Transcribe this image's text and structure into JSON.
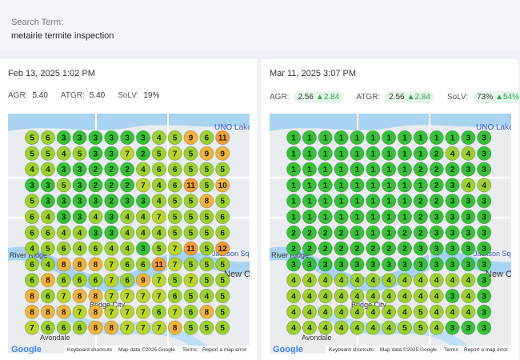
{
  "search": {
    "label": "Search Term:",
    "term": "metairie termite inspection"
  },
  "panels": [
    {
      "date": "Feb 13, 2025 1:02 PM",
      "metrics": [
        {
          "label": "AGR:",
          "value": "5.40"
        },
        {
          "label": "ATGR:",
          "value": "5.40"
        },
        {
          "label": "SoLV:",
          "value": "19%"
        }
      ],
      "map": {
        "labels": [
          "UNO Lakefr",
          "River Ridge",
          "Bridge City",
          "Avondale",
          "Jackson Squ",
          "New O"
        ],
        "footer": [
          "Google",
          "Keyboard shortcuts",
          "Map data ©2025 Google",
          "Terms",
          "Report a map error"
        ],
        "grid": [
          [
            5,
            6,
            3,
            3,
            3,
            3,
            3,
            3,
            4,
            5,
            9,
            6,
            11
          ],
          [
            5,
            5,
            4,
            5,
            3,
            3,
            7,
            2,
            5,
            7,
            5,
            9,
            9
          ],
          [
            4,
            4,
            3,
            3,
            2,
            2,
            2,
            4,
            6,
            6,
            5,
            5,
            5
          ],
          [
            3,
            3,
            5,
            3,
            2,
            2,
            2,
            7,
            4,
            6,
            11,
            5,
            10
          ],
          [
            5,
            3,
            3,
            3,
            3,
            2,
            3,
            3,
            4,
            5,
            5,
            8,
            5
          ],
          [
            6,
            4,
            3,
            3,
            4,
            3,
            4,
            4,
            7,
            5,
            5,
            5,
            6
          ],
          [
            6,
            6,
            4,
            4,
            3,
            3,
            4,
            4,
            4,
            5,
            5,
            5,
            6
          ],
          [
            4,
            5,
            6,
            4,
            6,
            4,
            4,
            3,
            5,
            7,
            11,
            5,
            12
          ],
          [
            6,
            4,
            8,
            8,
            8,
            7,
            6,
            6,
            11,
            7,
            5,
            5,
            5
          ],
          [
            6,
            8,
            6,
            6,
            6,
            7,
            6,
            9,
            7,
            5,
            7,
            5,
            5
          ],
          [
            8,
            6,
            7,
            8,
            8,
            7,
            7,
            7,
            7,
            6,
            5,
            4,
            5
          ],
          [
            8,
            8,
            8,
            7,
            8,
            7,
            7,
            7,
            6,
            7,
            6,
            8,
            5
          ],
          [
            7,
            6,
            6,
            6,
            8,
            8,
            7,
            7,
            7,
            8,
            5,
            5,
            5
          ]
        ]
      }
    },
    {
      "date": "Mar 11, 2025 3:07 PM",
      "metrics": [
        {
          "label": "AGR:",
          "value": "2.56",
          "change": "2.84"
        },
        {
          "label": "ATGR:",
          "value": "2.56",
          "change": "2.84"
        },
        {
          "label": "SoLV:",
          "value": "73%",
          "change": "54%"
        }
      ],
      "map": {
        "labels": [
          "UNO Lakefr",
          "River Ridge",
          "Bridge City",
          "Avondale",
          "Jackson Squ",
          "New O"
        ],
        "footer": [
          "Google",
          "Keyboard shortcuts",
          "Map data ©2025 Google",
          "Terms",
          "Report a map error"
        ],
        "grid": [
          [
            1,
            1,
            1,
            1,
            1,
            1,
            1,
            1,
            1,
            1,
            1,
            3,
            3
          ],
          [
            1,
            1,
            1,
            1,
            1,
            1,
            1,
            1,
            1,
            2,
            4,
            4,
            3
          ],
          [
            1,
            1,
            1,
            1,
            1,
            1,
            1,
            1,
            2,
            2,
            2,
            3,
            3
          ],
          [
            1,
            1,
            1,
            1,
            1,
            1,
            1,
            1,
            1,
            2,
            3,
            4,
            4
          ],
          [
            1,
            1,
            1,
            1,
            1,
            1,
            1,
            1,
            2,
            2,
            3,
            3,
            3
          ],
          [
            1,
            1,
            1,
            1,
            1,
            1,
            1,
            1,
            2,
            3,
            3,
            3,
            3
          ],
          [
            2,
            2,
            2,
            2,
            1,
            1,
            1,
            2,
            2,
            3,
            3,
            3,
            3
          ],
          [
            2,
            2,
            2,
            2,
            2,
            2,
            2,
            2,
            3,
            3,
            3,
            3,
            3
          ],
          [
            3,
            3,
            3,
            3,
            3,
            3,
            3,
            3,
            3,
            3,
            3,
            3,
            3
          ],
          [
            4,
            4,
            4,
            4,
            4,
            4,
            4,
            4,
            4,
            4,
            4,
            4,
            3
          ],
          [
            4,
            4,
            4,
            4,
            4,
            4,
            4,
            4,
            4,
            4,
            3,
            4,
            3
          ],
          [
            4,
            4,
            4,
            4,
            4,
            4,
            4,
            4,
            5,
            4,
            4,
            4,
            3
          ],
          [
            4,
            4,
            4,
            4,
            4,
            4,
            4,
            5,
            5,
            4,
            3,
            3,
            3
          ]
        ]
      }
    }
  ]
}
